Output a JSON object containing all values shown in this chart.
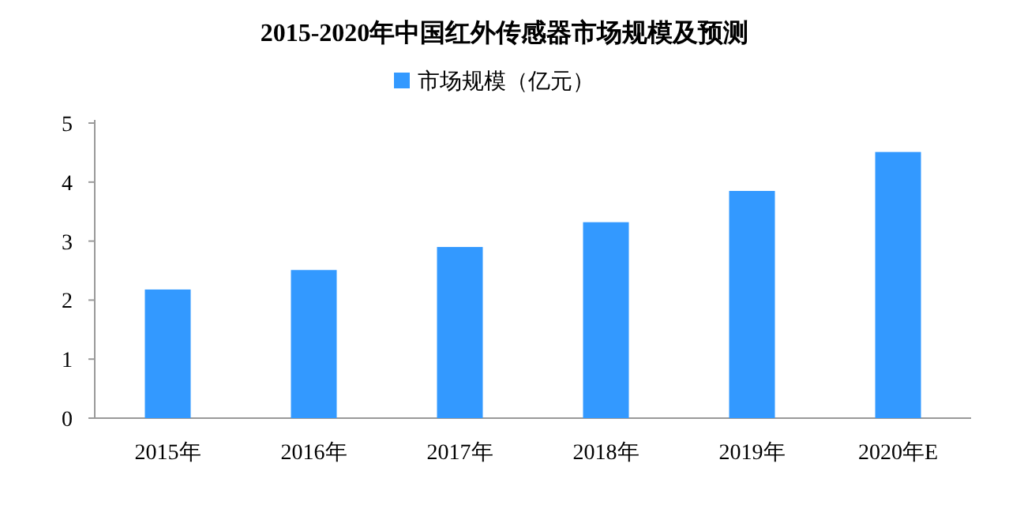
{
  "chart_data": {
    "type": "bar",
    "title": "2015-2020年中国红外传感器市场规模及预测",
    "categories": [
      "2015年",
      "2016年",
      "2017年",
      "2018年",
      "2019年",
      "2020年E"
    ],
    "series": [
      {
        "name": "市场规模（亿元）",
        "color": "#3399ff",
        "values": [
          2.18,
          2.51,
          2.9,
          3.32,
          3.85,
          4.51
        ]
      }
    ],
    "ylim": [
      0,
      5
    ],
    "yticks": [
      0,
      1,
      2,
      3,
      4,
      5
    ],
    "legend": "top"
  }
}
